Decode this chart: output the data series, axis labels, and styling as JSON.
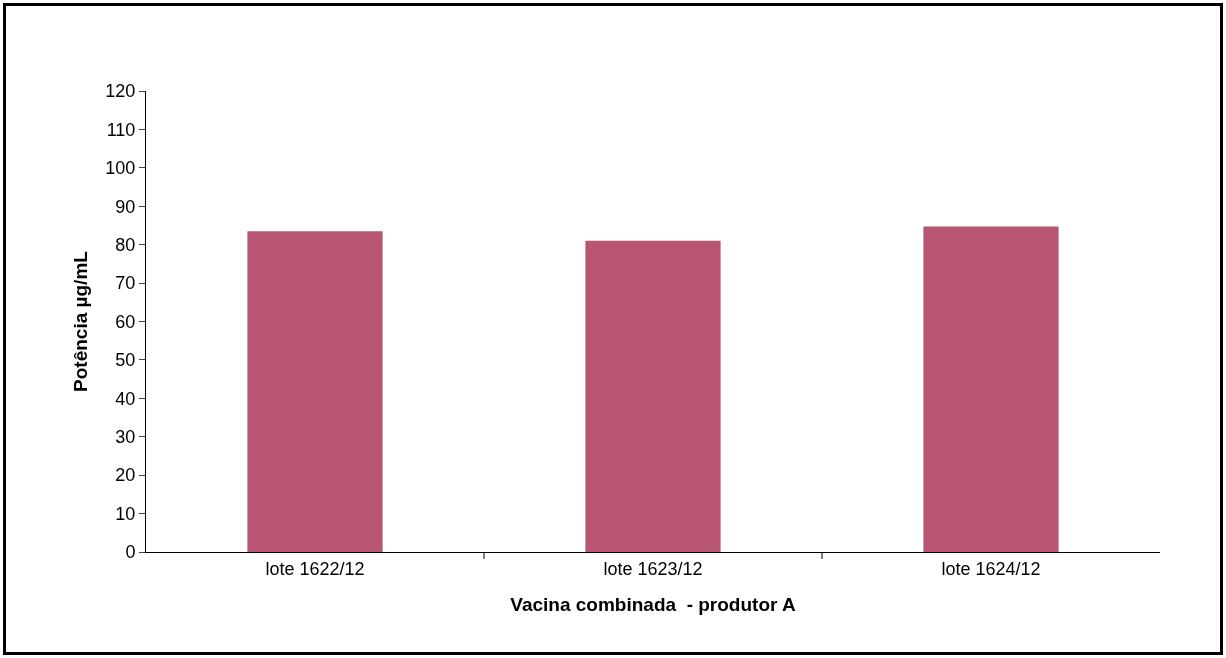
{
  "chart_data": {
    "type": "bar",
    "xlabel": "Vacina combinada  - produtor A",
    "ylabel": "Potência µg/mL",
    "categories": [
      "lote 1622/12",
      "lote 1623/12",
      "lote 1624/12"
    ],
    "values": [
      83.5,
      81,
      84.7
    ],
    "color": "#b85572",
    "ylim": [
      0,
      120
    ],
    "yticks": [
      0,
      10,
      20,
      30,
      40,
      50,
      60,
      70,
      80,
      90,
      100,
      110,
      120
    ],
    "grid": false,
    "legend": false
  }
}
